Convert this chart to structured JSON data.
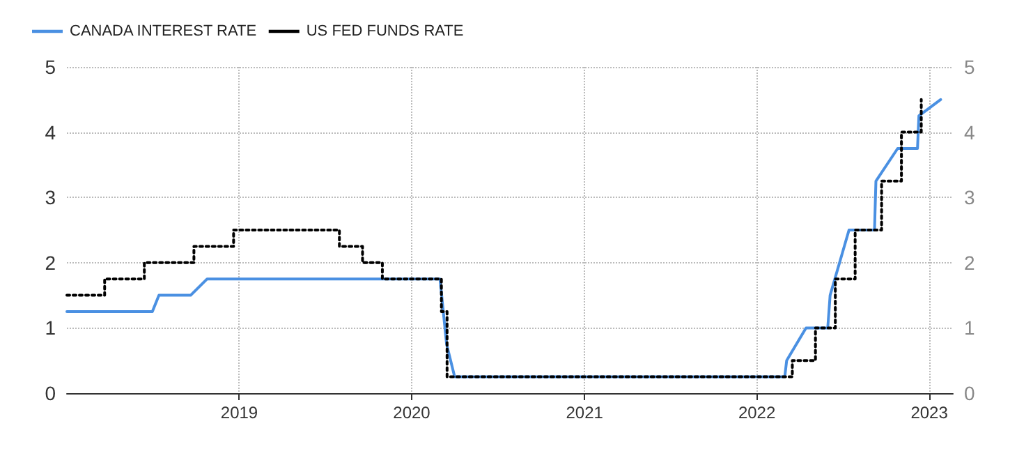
{
  "chart_data": {
    "type": "line",
    "xlim": [
      "2018-01-01",
      "2023-02-20"
    ],
    "xticks": [
      {
        "value": "2019-01-01",
        "label": "2019"
      },
      {
        "value": "2020-01-01",
        "label": "2020"
      },
      {
        "value": "2021-01-01",
        "label": "2021"
      },
      {
        "value": "2022-01-01",
        "label": "2022"
      },
      {
        "value": "2023-01-01",
        "label": "2023"
      }
    ],
    "ylim": [
      0,
      5
    ],
    "yticks": [
      0,
      1,
      2,
      3,
      4,
      5
    ],
    "y2lim": [
      0,
      5
    ],
    "y2ticks": [
      0,
      1,
      2,
      3,
      4,
      5
    ],
    "grid": true,
    "legend": "top left",
    "marker": "none",
    "series": [
      {
        "name": "CANADA INTEREST RATE",
        "line_style": "solid",
        "color": "#4a90e2",
        "x": [
          "2018-01-01",
          "2018-07-01",
          "2018-07-15",
          "2018-09-20",
          "2018-10-25",
          "2020-03-01",
          "2020-03-15",
          "2020-04-01",
          "2022-03-01",
          "2022-03-05",
          "2022-04-15",
          "2022-05-31",
          "2022-06-05",
          "2022-07-15",
          "2022-09-07",
          "2022-09-10",
          "2022-10-26",
          "2022-12-07",
          "2022-12-10",
          "2023-01-25"
        ],
        "values": [
          1.25,
          1.25,
          1.5,
          1.5,
          1.75,
          1.75,
          0.75,
          0.25,
          0.25,
          0.5,
          1.0,
          1.0,
          1.5,
          2.5,
          2.5,
          3.25,
          3.75,
          3.75,
          4.25,
          4.5
        ]
      },
      {
        "name": "US FED FUNDS RATE",
        "type": "step",
        "line_style": "dotted",
        "color": "#000000",
        "x": [
          "2018-01-01",
          "2018-03-22",
          "2018-06-14",
          "2018-09-27",
          "2018-12-20",
          "2019-08-01",
          "2019-09-19",
          "2019-10-31",
          "2020-03-04",
          "2020-03-16",
          "2022-03-17",
          "2022-05-05",
          "2022-06-16",
          "2022-07-28",
          "2022-09-22",
          "2022-11-03",
          "2022-12-15"
        ],
        "values": [
          1.5,
          1.75,
          2.0,
          2.25,
          2.5,
          2.25,
          2.0,
          1.75,
          1.25,
          0.25,
          0.5,
          1.0,
          1.75,
          2.5,
          3.25,
          4.0,
          4.5
        ]
      }
    ]
  }
}
